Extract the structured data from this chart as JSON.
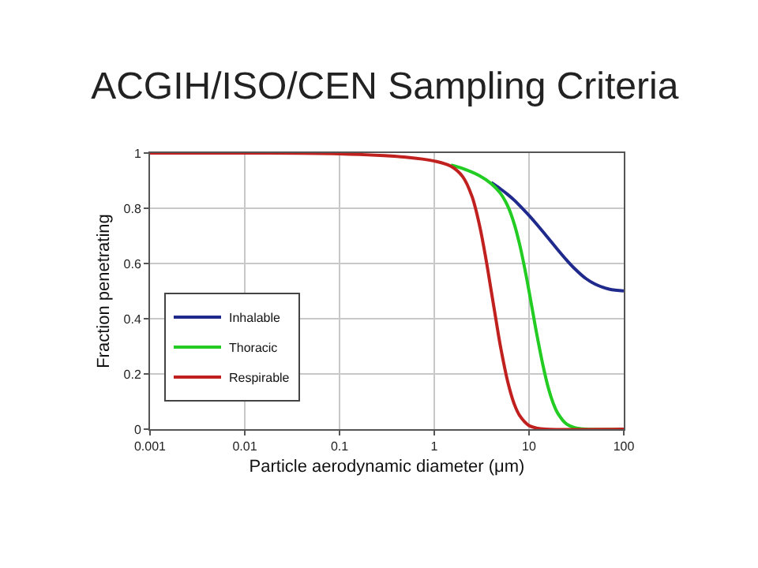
{
  "chart_data": {
    "type": "line",
    "title": "ACGIH/ISO/CEN Sampling Criteria",
    "xlabel": "Particle aerodynamic diameter (μm)",
    "ylabel": "Fraction penetrating",
    "log": "x",
    "xlim": [
      0.001,
      100
    ],
    "xticks": [
      0.001,
      0.01,
      0.1,
      1,
      10,
      100
    ],
    "ylim": [
      0,
      1
    ],
    "yticks": [
      0,
      0.2,
      0.4,
      0.6,
      0.8,
      1
    ],
    "grid": true,
    "legend": "bottom left",
    "marker": "none",
    "line_style": "solid",
    "series": [
      {
        "name": "Inhalable",
        "color": "#1f2a8c",
        "x": [
          4,
          5,
          6,
          7,
          8,
          10,
          12,
          15,
          20,
          25,
          30,
          40,
          50,
          70,
          100
        ],
        "values": [
          0.893,
          0.87,
          0.849,
          0.829,
          0.809,
          0.774,
          0.743,
          0.703,
          0.651,
          0.612,
          0.583,
          0.545,
          0.525,
          0.507,
          0.501
        ]
      },
      {
        "name": "Thoracic",
        "color": "#22cc22",
        "x": [
          1.5,
          2,
          3,
          4,
          5,
          6,
          7,
          8,
          9,
          10,
          11,
          12,
          14,
          16,
          18,
          20,
          25,
          30,
          40,
          100
        ],
        "values": [
          0.957,
          0.944,
          0.918,
          0.889,
          0.854,
          0.806,
          0.742,
          0.666,
          0.583,
          0.5,
          0.421,
          0.349,
          0.233,
          0.149,
          0.094,
          0.059,
          0.018,
          0.006,
          0.0,
          0.0
        ]
      },
      {
        "name": "Respirable",
        "color": "#c0201e",
        "x": [
          0.001,
          0.01,
          0.1,
          0.5,
          1,
          1.5,
          2,
          2.5,
          3,
          3.5,
          4,
          4.5,
          5,
          6,
          7,
          8,
          10,
          12,
          15,
          100
        ],
        "values": [
          1.0,
          1.0,
          0.997,
          0.985,
          0.971,
          0.952,
          0.914,
          0.843,
          0.739,
          0.619,
          0.499,
          0.392,
          0.299,
          0.168,
          0.09,
          0.048,
          0.013,
          0.004,
          0.0,
          0.0
        ]
      }
    ]
  }
}
